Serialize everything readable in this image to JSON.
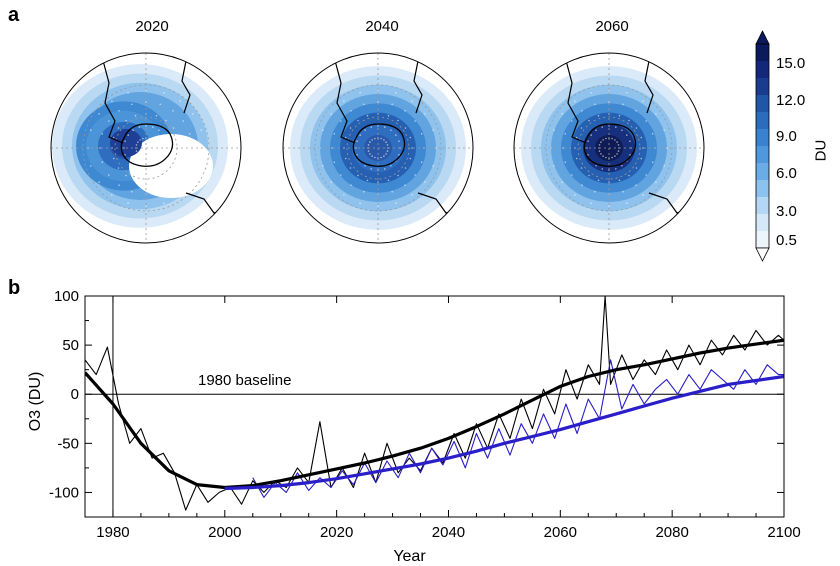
{
  "panel_a": {
    "label": "a",
    "maps": [
      {
        "year": "2020",
        "intensity": 0.55,
        "hole_open": true
      },
      {
        "year": "2040",
        "intensity": 0.75,
        "hole_open": false
      },
      {
        "year": "2060",
        "intensity": 1.0,
        "hole_open": false
      }
    ],
    "colorbar": {
      "unit": "DU",
      "tick_labels": [
        "15.0",
        "12.0",
        "9.0",
        "6.0",
        "3.0",
        "0.5"
      ],
      "colors": [
        "#0b1a5c",
        "#13287a",
        "#1a3c8f",
        "#1f56a6",
        "#2b6cbd",
        "#3a82d0",
        "#4f98dd",
        "#6aace6",
        "#8cc2ee",
        "#b3d7f4",
        "#d4e8f8",
        "#ecf4fc"
      ]
    }
  },
  "panel_b": {
    "label": "b",
    "annotation": "1980 baseline"
  },
  "chart_data": {
    "type": "line",
    "xlabel": "Year",
    "ylabel": "O3 (DU)",
    "xlim": [
      1975,
      2100
    ],
    "ylim": [
      -125,
      100
    ],
    "xticks": [
      1980,
      2000,
      2020,
      2040,
      2060,
      2080,
      2100
    ],
    "yticks": [
      -100,
      -50,
      0,
      50,
      100
    ],
    "baseline_year": 1980,
    "series": [
      {
        "color": "#000000",
        "style": "thin",
        "x": [
          1975,
          1977,
          1979,
          1981,
          1983,
          1985,
          1987,
          1989,
          1991,
          1993,
          1995,
          1997,
          1999,
          2001,
          2003,
          2005,
          2007,
          2009,
          2011,
          2013,
          2015,
          2017,
          2019,
          2021,
          2023,
          2025,
          2027,
          2029,
          2031,
          2033,
          2035,
          2037,
          2039,
          2041,
          2043,
          2045,
          2047,
          2049,
          2051,
          2053,
          2055,
          2057,
          2059,
          2061,
          2063,
          2065,
          2067,
          2068,
          2069,
          2071,
          2073,
          2075,
          2077,
          2079,
          2081,
          2083,
          2085,
          2087,
          2089,
          2091,
          2093,
          2095,
          2097,
          2099,
          2100
        ],
        "y": [
          35,
          20,
          48,
          -10,
          -50,
          -35,
          -65,
          -60,
          -80,
          -118,
          -92,
          -110,
          -100,
          -95,
          -112,
          -88,
          -100,
          -88,
          -95,
          -75,
          -90,
          -28,
          -95,
          -75,
          -95,
          -60,
          -90,
          -50,
          -80,
          -65,
          -78,
          -55,
          -70,
          -40,
          -65,
          -30,
          -55,
          -20,
          -45,
          -5,
          -35,
          5,
          -20,
          25,
          -5,
          30,
          10,
          100,
          10,
          40,
          15,
          35,
          20,
          45,
          25,
          50,
          30,
          55,
          40,
          60,
          45,
          65,
          50,
          60,
          55
        ]
      },
      {
        "color": "#2a1ec8",
        "style": "thin",
        "x": [
          2005,
          2007,
          2009,
          2011,
          2013,
          2015,
          2017,
          2019,
          2021,
          2023,
          2025,
          2027,
          2029,
          2031,
          2033,
          2035,
          2037,
          2039,
          2041,
          2043,
          2045,
          2047,
          2049,
          2051,
          2053,
          2055,
          2057,
          2059,
          2061,
          2063,
          2065,
          2067,
          2069,
          2071,
          2073,
          2075,
          2077,
          2079,
          2081,
          2083,
          2085,
          2087,
          2089,
          2091,
          2093,
          2095,
          2097,
          2099,
          2100
        ],
        "y": [
          -85,
          -105,
          -90,
          -100,
          -80,
          -98,
          -85,
          -95,
          -78,
          -92,
          -70,
          -90,
          -68,
          -85,
          -60,
          -80,
          -55,
          -72,
          -48,
          -75,
          -40,
          -65,
          -35,
          -62,
          -30,
          -50,
          -20,
          -45,
          -10,
          -40,
          -5,
          -25,
          35,
          -15,
          10,
          -10,
          5,
          15,
          0,
          20,
          5,
          25,
          15,
          5,
          25,
          10,
          30,
          20,
          20
        ]
      },
      {
        "color": "#000000",
        "style": "thick",
        "x": [
          1975,
          1980,
          1985,
          1990,
          1995,
          2000,
          2005,
          2010,
          2015,
          2020,
          2025,
          2030,
          2035,
          2040,
          2045,
          2050,
          2055,
          2060,
          2065,
          2070,
          2075,
          2080,
          2085,
          2090,
          2095,
          2100
        ],
        "y": [
          22,
          -10,
          -50,
          -78,
          -92,
          -95,
          -93,
          -88,
          -82,
          -76,
          -70,
          -63,
          -55,
          -45,
          -33,
          -20,
          -6,
          8,
          18,
          25,
          30,
          36,
          42,
          47,
          51,
          55
        ]
      },
      {
        "color": "#2a1ec8",
        "style": "thick",
        "x": [
          2000,
          2005,
          2010,
          2015,
          2020,
          2025,
          2030,
          2035,
          2040,
          2045,
          2050,
          2055,
          2060,
          2065,
          2070,
          2075,
          2080,
          2085,
          2090,
          2095,
          2100
        ],
        "y": [
          -96,
          -95,
          -93,
          -90,
          -86,
          -81,
          -76,
          -71,
          -65,
          -58,
          -50,
          -43,
          -36,
          -28,
          -20,
          -12,
          -4,
          3,
          10,
          14,
          18
        ]
      }
    ]
  }
}
